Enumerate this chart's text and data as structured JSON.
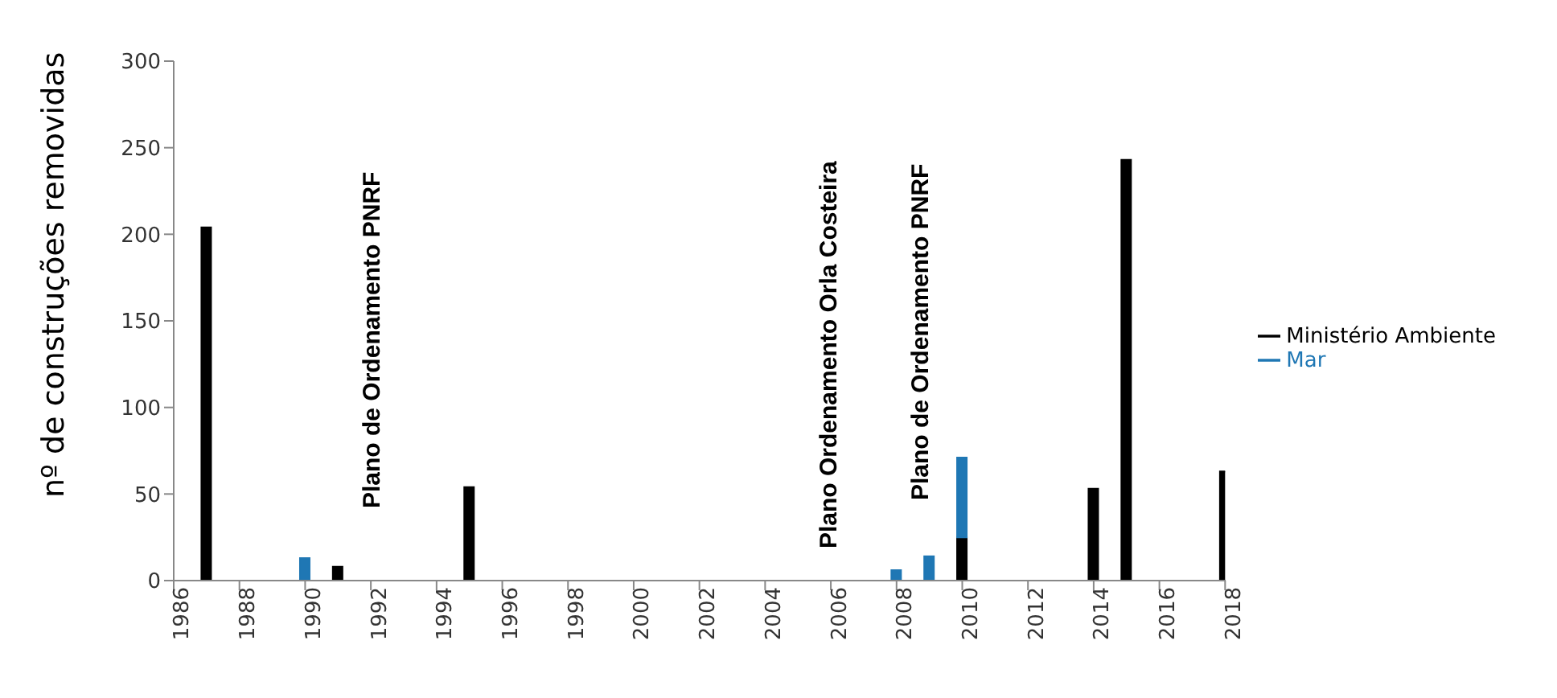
{
  "chart_data": {
    "type": "bar",
    "stacked": true,
    "ylabel": "nº de construções removidas",
    "x": [
      1987,
      1990,
      1991,
      1995,
      2008,
      2009,
      2010,
      2014,
      2015,
      2018
    ],
    "series": [
      {
        "name": "Ministério Ambiente",
        "color": "#000000",
        "values": [
          204,
          null,
          8,
          54,
          null,
          null,
          25,
          53,
          243,
          63
        ]
      },
      {
        "name": "Mar",
        "color": "#1f77b4",
        "values": [
          null,
          13,
          null,
          null,
          6,
          14,
          46,
          null,
          null,
          null
        ]
      }
    ],
    "xlim": [
      1986,
      2018
    ],
    "xticks": [
      1986,
      1988,
      1990,
      1992,
      1994,
      1996,
      1998,
      2000,
      2002,
      2004,
      2006,
      2008,
      2010,
      2012,
      2014,
      2016,
      2018
    ],
    "ylim": [
      0,
      300
    ],
    "yticks": [
      0,
      50,
      100,
      150,
      200,
      250,
      300
    ],
    "annotations": [
      "Plano de Ordenamento PNRF",
      "Plano Ordenamento Orla Costeira",
      "Plano de Ordenamento PNRF"
    ],
    "grid": false,
    "legend": "right"
  }
}
